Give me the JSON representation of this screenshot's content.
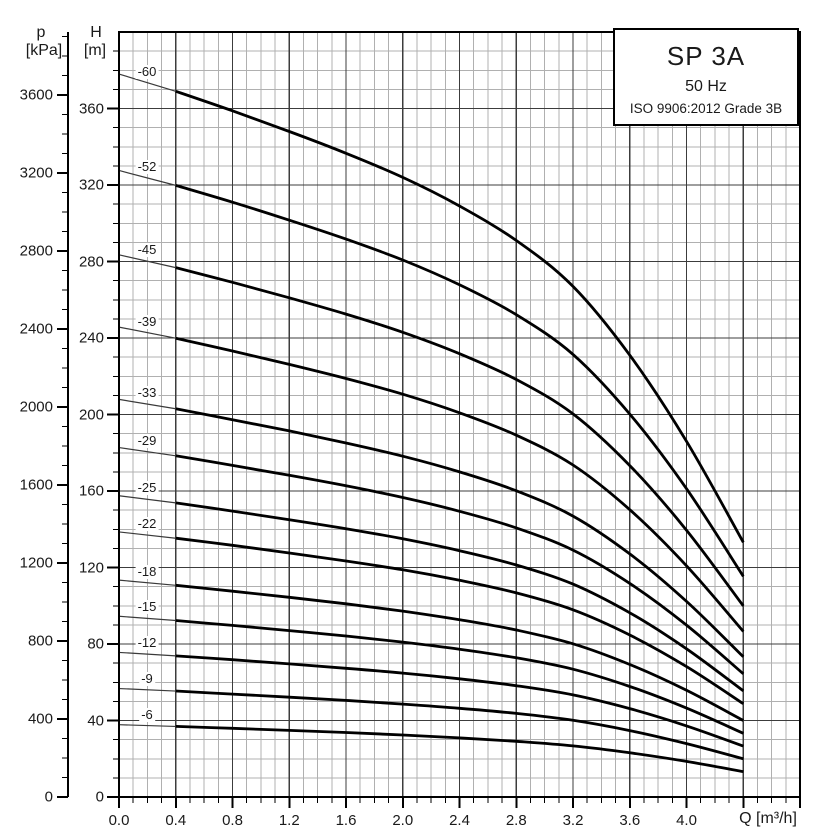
{
  "title_box": {
    "model": "SP 3A",
    "frequency": "50 Hz",
    "standard": "ISO 9906:2012 Grade 3B"
  },
  "chart_data": {
    "type": "line",
    "title": "SP 3A",
    "subtitle": "50 Hz",
    "note": "ISO 9906:2012 Grade 3B",
    "x_axis": {
      "label": "Q [m³/h]",
      "min": 0,
      "max": 4.8,
      "major_step": 0.4,
      "minor_step": 0.1,
      "tick_labels": [
        "0.0",
        "0.4",
        "0.8",
        "1.2",
        "1.6",
        "2.0",
        "2.4",
        "2.8",
        "3.2",
        "3.6",
        "4.0"
      ]
    },
    "h_axis": {
      "symbol": "H",
      "unit": "[m]",
      "min": 0,
      "max": 400,
      "major_step": 40,
      "minor_step": 10,
      "ticks": [
        360,
        320,
        280,
        240,
        200,
        160,
        120,
        80,
        40,
        0
      ]
    },
    "p_axis": {
      "symbol": "p",
      "unit": "[kPa]",
      "min": 0,
      "max": 3900,
      "major_step": 400,
      "minor_step": 100,
      "kpa_per_m": 9.81,
      "ticks": [
        3600,
        3200,
        2800,
        2400,
        2000,
        1600,
        1200,
        800,
        400,
        0
      ]
    },
    "grid": true,
    "legend_position": "labels at left end of each curve",
    "curves_min_flow_q": 0.4,
    "curves_max_flow_q": 4.4,
    "x": [
      0.0,
      0.4,
      0.8,
      1.2,
      1.6,
      2.0,
      2.4,
      2.8,
      3.2,
      3.6,
      4.0,
      4.4
    ],
    "series": [
      {
        "name": "-60",
        "stages": 60,
        "H": [
          378.0,
          369.0,
          358.8,
          348.0,
          336.6,
          324.0,
          309.0,
          291.0,
          267.0,
          231.0,
          186.0,
          133.2
        ]
      },
      {
        "name": "-52",
        "stages": 52,
        "H": [
          327.6,
          319.8,
          311.0,
          301.6,
          291.7,
          280.8,
          267.8,
          252.2,
          231.4,
          200.2,
          161.2,
          115.4
        ]
      },
      {
        "name": "-45",
        "stages": 45,
        "H": [
          283.5,
          276.8,
          269.1,
          261.0,
          252.5,
          243.0,
          231.8,
          218.3,
          200.3,
          173.3,
          139.5,
          99.9
        ]
      },
      {
        "name": "-39",
        "stages": 39,
        "H": [
          245.7,
          239.9,
          233.2,
          226.2,
          218.8,
          210.6,
          200.9,
          189.2,
          173.6,
          150.2,
          120.9,
          86.6
        ]
      },
      {
        "name": "-33",
        "stages": 33,
        "H": [
          207.9,
          203.0,
          197.3,
          191.4,
          185.1,
          178.2,
          170.0,
          160.1,
          146.9,
          127.1,
          102.3,
          73.3
        ]
      },
      {
        "name": "-29",
        "stages": 29,
        "H": [
          182.7,
          178.4,
          173.4,
          168.2,
          162.7,
          156.6,
          149.4,
          140.7,
          129.1,
          111.7,
          89.9,
          64.4
        ]
      },
      {
        "name": "-25",
        "stages": 25,
        "H": [
          157.5,
          153.8,
          149.5,
          145.0,
          140.3,
          135.0,
          128.8,
          121.3,
          111.3,
          96.3,
          77.5,
          55.5
        ]
      },
      {
        "name": "-22",
        "stages": 22,
        "H": [
          138.6,
          135.3,
          131.6,
          127.6,
          123.4,
          118.8,
          113.3,
          106.7,
          97.9,
          84.7,
          68.2,
          48.8
        ]
      },
      {
        "name": "-18",
        "stages": 18,
        "H": [
          113.4,
          110.7,
          107.6,
          104.4,
          101.0,
          97.2,
          92.7,
          87.3,
          80.1,
          69.3,
          55.8,
          40.0
        ]
      },
      {
        "name": "-15",
        "stages": 15,
        "H": [
          94.5,
          92.3,
          89.7,
          87.0,
          84.2,
          81.0,
          77.3,
          72.8,
          66.8,
          57.8,
          46.5,
          33.3
        ]
      },
      {
        "name": "-12",
        "stages": 12,
        "H": [
          75.6,
          73.8,
          71.8,
          69.6,
          67.3,
          64.8,
          61.8,
          58.2,
          53.4,
          46.2,
          37.2,
          26.6
        ]
      },
      {
        "name": "-9",
        "stages": 9,
        "H": [
          56.7,
          55.4,
          53.8,
          52.2,
          50.5,
          48.6,
          46.4,
          43.7,
          40.1,
          34.7,
          27.9,
          20.0
        ]
      },
      {
        "name": "-6",
        "stages": 6,
        "H": [
          37.8,
          36.9,
          35.9,
          34.8,
          33.7,
          32.4,
          30.9,
          29.1,
          26.7,
          23.1,
          18.6,
          13.3
        ]
      }
    ]
  },
  "colors": {
    "curve": "#000000",
    "leader_line": "#3a3a3a",
    "grid_major": "#3c3c3c",
    "grid_minor": "#b0b0b0",
    "border": "#000000",
    "text": "#1a1a1a",
    "background": "#ffffff"
  }
}
